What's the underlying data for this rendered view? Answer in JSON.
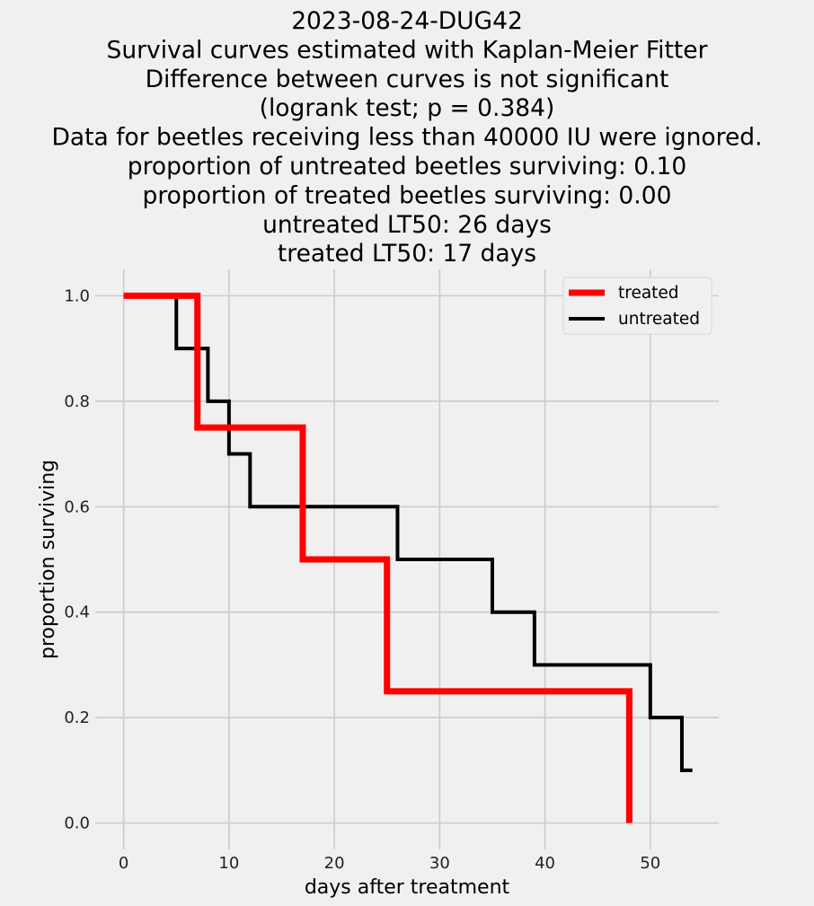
{
  "chart_data": {
    "type": "line",
    "step": true,
    "title_lines": [
      "2023-08-24-DUG42",
      "Survival curves estimated with Kaplan-Meier Fitter",
      "Difference between curves is not significant",
      "(logrank test; p = 0.384)",
      "Data for beetles receiving less than 40000 IU were ignored.",
      "proportion of untreated beetles surviving: 0.10",
      "proportion of treated beetles surviving: 0.00",
      "untreated LT50: 26 days",
      "treated LT50: 17 days"
    ],
    "xlabel": "days after treatment",
    "ylabel": "proportion surviving",
    "xlim": [
      -2.7,
      56.5
    ],
    "ylim": [
      -0.05,
      1.05
    ],
    "xticks": [
      0,
      10,
      20,
      30,
      40,
      50
    ],
    "yticks": [
      0.0,
      0.2,
      0.4,
      0.6,
      0.8,
      1.0
    ],
    "xtick_labels": [
      "0",
      "10",
      "20",
      "30",
      "40",
      "50"
    ],
    "ytick_labels": [
      "0.0",
      "0.2",
      "0.4",
      "0.6",
      "0.8",
      "1.0"
    ],
    "grid": true,
    "legend_position": "top-right",
    "series": [
      {
        "name": "treated",
        "color": "#ff0000",
        "x": [
          0,
          7,
          17,
          25,
          48
        ],
        "y": [
          1.0,
          0.75,
          0.5,
          0.25,
          0.0
        ],
        "end_x": 48
      },
      {
        "name": "untreated",
        "color": "#000000",
        "x": [
          0,
          5,
          8,
          10,
          12,
          26,
          35,
          39,
          50,
          53
        ],
        "y": [
          1.0,
          0.9,
          0.8,
          0.7,
          0.6,
          0.5,
          0.4,
          0.3,
          0.2,
          0.1
        ],
        "end_x": 54
      }
    ]
  }
}
